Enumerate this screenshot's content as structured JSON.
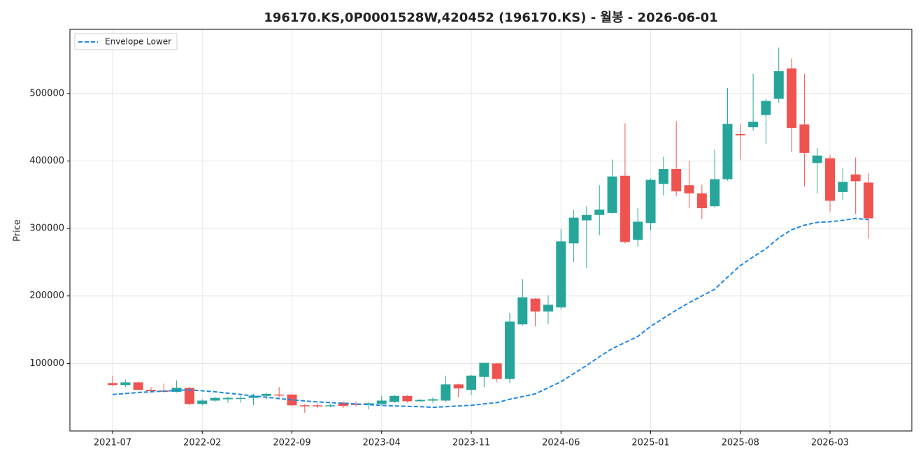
{
  "chart_data": {
    "type": "candlestick",
    "title": "196170.KS,0P0001528W,420452 (196170.KS) - 월봉 - 2026-06-01",
    "ylabel": "Price",
    "x": [
      "2021-07",
      "2021-08",
      "2021-09",
      "2021-10",
      "2021-11",
      "2021-12",
      "2022-01",
      "2022-02",
      "2022-03",
      "2022-04",
      "2022-05",
      "2022-06",
      "2022-07",
      "2022-08",
      "2022-09",
      "2022-10",
      "2022-11",
      "2022-12",
      "2023-01",
      "2023-02",
      "2023-03",
      "2023-04",
      "2023-05",
      "2023-06",
      "2023-07",
      "2023-08",
      "2023-09",
      "2023-10",
      "2023-11",
      "2023-12",
      "2024-01",
      "2024-02",
      "2024-03",
      "2024-04",
      "2024-05",
      "2024-06",
      "2024-07",
      "2024-08",
      "2024-09",
      "2024-10",
      "2024-11",
      "2024-12",
      "2025-01",
      "2025-02",
      "2025-03",
      "2025-04",
      "2025-05",
      "2025-06",
      "2025-07",
      "2025-08",
      "2025-09",
      "2025-10",
      "2025-11",
      "2025-12",
      "2026-01",
      "2026-02",
      "2026-03",
      "2026-04",
      "2026-05",
      "2026-06"
    ],
    "open": [
      71000,
      68000,
      72000,
      61000,
      60000,
      58000,
      64000,
      40000,
      45000,
      47000,
      48000,
      49000,
      52000,
      54000,
      54000,
      38000,
      38000,
      37000,
      42000,
      40000,
      39000,
      40000,
      43000,
      52000,
      44000,
      45000,
      45000,
      69000,
      61000,
      80000,
      100000,
      77000,
      158000,
      196000,
      177000,
      183000,
      278000,
      312000,
      320000,
      323000,
      378000,
      283000,
      308000,
      366000,
      388000,
      364000,
      352000,
      333000,
      373000,
      440000,
      450000,
      468000,
      492000,
      537000,
      454000,
      397000,
      404000,
      354000,
      380000,
      368000
    ],
    "high": [
      82000,
      76000,
      73000,
      65000,
      70000,
      75000,
      65000,
      47000,
      51000,
      51000,
      52000,
      55000,
      57000,
      65000,
      55000,
      40000,
      41000,
      40000,
      44000,
      44000,
      43000,
      52000,
      53000,
      53000,
      47000,
      50000,
      82000,
      70000,
      83000,
      101000,
      101000,
      175000,
      225000,
      197000,
      201000,
      299000,
      328000,
      333000,
      364000,
      402000,
      456000,
      330000,
      374000,
      406000,
      459000,
      400000,
      365000,
      417000,
      508000,
      455000,
      529000,
      492000,
      568000,
      552000,
      529000,
      419000,
      409000,
      389000,
      405000,
      382000
    ],
    "low": [
      66000,
      65000,
      60000,
      57000,
      57000,
      57000,
      38000,
      38000,
      43000,
      42000,
      42000,
      38000,
      47000,
      50000,
      36000,
      27000,
      34000,
      35000,
      34000,
      36000,
      32000,
      38000,
      42000,
      42000,
      43000,
      42000,
      43000,
      50000,
      53000,
      65000,
      72000,
      71000,
      156000,
      155000,
      158000,
      180000,
      250000,
      241000,
      290000,
      322000,
      278000,
      273000,
      297000,
      349000,
      348000,
      330000,
      314000,
      331000,
      371000,
      402000,
      445000,
      425000,
      486000,
      413000,
      362000,
      352000,
      325000,
      342000,
      321000,
      285000
    ],
    "close": [
      68000,
      72000,
      61000,
      59000,
      58000,
      64000,
      40000,
      45000,
      49000,
      49000,
      49000,
      52000,
      55000,
      53000,
      38000,
      37000,
      37000,
      38000,
      37000,
      39000,
      41000,
      45000,
      52000,
      44000,
      46000,
      47000,
      69000,
      63000,
      82000,
      101000,
      77000,
      162000,
      198000,
      177000,
      187000,
      281000,
      316000,
      320000,
      328000,
      377000,
      280000,
      310000,
      372000,
      388000,
      355000,
      352000,
      330000,
      373000,
      455000,
      438000,
      458000,
      489000,
      533000,
      449000,
      412000,
      408000,
      341000,
      369000,
      370000,
      315000
    ],
    "up_color": "#26a69a",
    "down_color": "#ef5350",
    "series": [
      {
        "name": "Envelope Lower",
        "color": "#1e88e5",
        "style": "dashed",
        "values": [
          54000,
          55500,
          57000,
          58000,
          59000,
          60000,
          61000,
          59500,
          58000,
          56000,
          54000,
          52000,
          50000,
          48000,
          46000,
          44500,
          43000,
          42000,
          41000,
          40000,
          39000,
          38000,
          37000,
          36500,
          36000,
          35000,
          36000,
          37000,
          38000,
          40000,
          42000,
          47000,
          51000,
          55000,
          64000,
          73000,
          85000,
          97000,
          110000,
          122000,
          131000,
          140000,
          155000,
          167000,
          179000,
          190000,
          200000,
          210000,
          228000,
          245000,
          258000,
          270000,
          286000,
          298000,
          305000,
          309000,
          310000,
          312000,
          315000,
          313000
        ]
      }
    ],
    "ylim": [
      0,
      595000
    ],
    "yticks": [
      100000,
      200000,
      300000,
      400000,
      500000
    ],
    "xticks": [
      "2021-07",
      "2022-02",
      "2022-09",
      "2023-04",
      "2023-11",
      "2024-06",
      "2025-01",
      "2025-08",
      "2026-03"
    ],
    "grid": true,
    "legend": "upper left"
  }
}
